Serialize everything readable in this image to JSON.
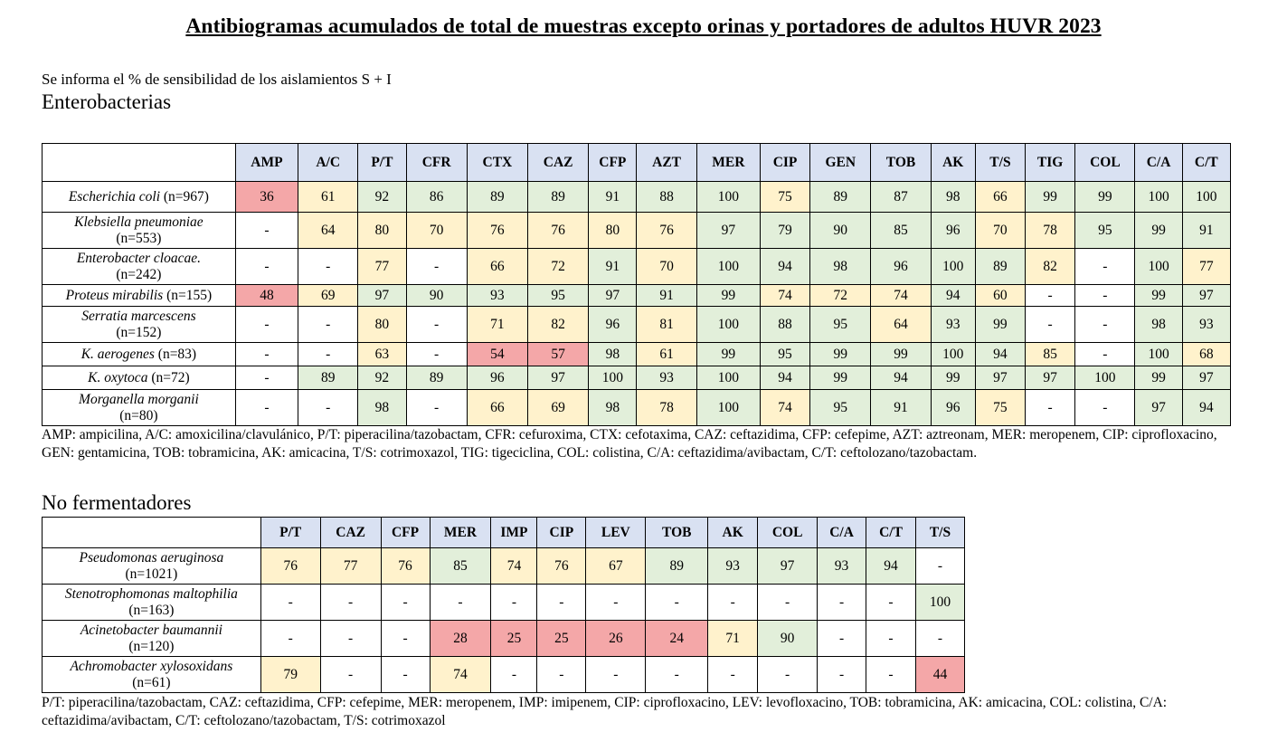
{
  "title": "Antibiogramas acumulados de total de muestras excepto orinas y portadores de adultos HUVR 2023",
  "intro": "Se informa el % de sensibilidad de los aislamientos S + I",
  "colors": {
    "green": "#e2efda",
    "yellow": "#fff2cc",
    "red": "#f4a7a8",
    "header": "#d9e1f2"
  },
  "entero": {
    "heading": "Enterobacterias",
    "columns": [
      "AMP",
      "A/C",
      "P/T",
      "CFR",
      "CTX",
      "CAZ",
      "CFP",
      "AZT",
      "MER",
      "CIP",
      "GEN",
      "TOB",
      "AK",
      "T/S",
      "TIG",
      "COL",
      "C/A",
      "C/T"
    ],
    "rows": [
      {
        "name": "Escherichia coli",
        "n": " (n=967)",
        "values": [
          "36",
          "61",
          "92",
          "86",
          "89",
          "89",
          "91",
          "88",
          "100",
          "75",
          "89",
          "87",
          "98",
          "66",
          "99",
          "99",
          "100",
          "100"
        ],
        "colors": [
          "r",
          "y",
          "g",
          "g",
          "g",
          "g",
          "g",
          "g",
          "g",
          "y",
          "g",
          "g",
          "g",
          "y",
          "g",
          "g",
          "g",
          "g"
        ]
      },
      {
        "name": "Klebsiella pneumoniae",
        "n": "(n=553)",
        "values": [
          "-",
          "64",
          "80",
          "70",
          "76",
          "76",
          "80",
          "76",
          "97",
          "79",
          "90",
          "85",
          "96",
          "70",
          "78",
          "95",
          "99",
          "91"
        ],
        "colors": [
          "w",
          "y",
          "y",
          "y",
          "y",
          "y",
          "y",
          "y",
          "g",
          "g",
          "g",
          "g",
          "g",
          "y",
          "y",
          "g",
          "g",
          "g"
        ]
      },
      {
        "name": "Enterobacter cloacae.",
        "n": "(n=242)",
        "values": [
          "-",
          "-",
          "77",
          "-",
          "66",
          "72",
          "91",
          "70",
          "100",
          "94",
          "98",
          "96",
          "100",
          "89",
          "82",
          "-",
          "100",
          "77"
        ],
        "colors": [
          "w",
          "w",
          "y",
          "w",
          "y",
          "y",
          "g",
          "y",
          "g",
          "g",
          "g",
          "g",
          "g",
          "g",
          "y",
          "w",
          "g",
          "y"
        ]
      },
      {
        "name": "Proteus mirabilis",
        "n": " (n=155)",
        "values": [
          "48",
          "69",
          "97",
          "90",
          "93",
          "95",
          "97",
          "91",
          "99",
          "74",
          "72",
          "74",
          "94",
          "60",
          "-",
          "-",
          "99",
          "97"
        ],
        "colors": [
          "r",
          "y",
          "g",
          "g",
          "g",
          "g",
          "g",
          "g",
          "g",
          "y",
          "y",
          "y",
          "g",
          "y",
          "w",
          "w",
          "g",
          "g"
        ]
      },
      {
        "name": "Serratia marcescens",
        "n": "(n=152)",
        "values": [
          "-",
          "-",
          "80",
          "-",
          "71",
          "82",
          "96",
          "81",
          "100",
          "88",
          "95",
          "64",
          "93",
          "99",
          "-",
          "-",
          "98",
          "93"
        ],
        "colors": [
          "w",
          "w",
          "y",
          "w",
          "y",
          "y",
          "g",
          "y",
          "g",
          "g",
          "g",
          "y",
          "g",
          "g",
          "w",
          "w",
          "g",
          "g"
        ]
      },
      {
        "name": "K. aerogenes",
        "n": " (n=83)",
        "values": [
          "-",
          "-",
          "63",
          "-",
          "54",
          "57",
          "98",
          "61",
          "99",
          "95",
          "99",
          "99",
          "100",
          "94",
          "85",
          "-",
          "100",
          "68"
        ],
        "colors": [
          "w",
          "w",
          "y",
          "w",
          "r",
          "r",
          "g",
          "y",
          "g",
          "g",
          "g",
          "g",
          "g",
          "g",
          "y",
          "w",
          "g",
          "y"
        ]
      },
      {
        "name": "K. oxytoca",
        "n": " (n=72)",
        "values": [
          "-",
          "89",
          "92",
          "89",
          "96",
          "97",
          "100",
          "93",
          "100",
          "94",
          "99",
          "94",
          "99",
          "97",
          "97",
          "100",
          "99",
          "97"
        ],
        "colors": [
          "w",
          "g",
          "g",
          "g",
          "g",
          "g",
          "g",
          "g",
          "g",
          "g",
          "g",
          "g",
          "g",
          "g",
          "g",
          "g",
          "g",
          "g"
        ]
      },
      {
        "name": "Morganella morganii",
        "n": "(n=80)",
        "values": [
          "-",
          "-",
          "98",
          "-",
          "66",
          "69",
          "98",
          "78",
          "100",
          "74",
          "95",
          "91",
          "96",
          "75",
          "-",
          "-",
          "97",
          "94"
        ],
        "colors": [
          "w",
          "w",
          "g",
          "w",
          "y",
          "y",
          "g",
          "y",
          "g",
          "y",
          "g",
          "g",
          "g",
          "y",
          "w",
          "w",
          "g",
          "g"
        ]
      }
    ],
    "footnote": "AMP: ampicilina, A/C: amoxicilina/clavulánico, P/T: piperacilina/tazobactam, CFR: cefuroxima, CTX: cefotaxima, CAZ: ceftazidima, CFP: cefepime, AZT: aztreonam, MER: meropenem, CIP: ciprofloxacino, GEN: gentamicina, TOB: tobramicina, AK: amicacina, T/S: cotrimoxazol, TIG: tigeciclina, COL: colistina, C/A: ceftazidima/avibactam, C/T: ceftolozano/tazobactam."
  },
  "nonferm": {
    "heading": "No fermentadores",
    "columns": [
      "P/T",
      "CAZ",
      "CFP",
      "MER",
      "IMP",
      "CIP",
      "LEV",
      "TOB",
      "AK",
      "COL",
      "C/A",
      "C/T",
      "T/S"
    ],
    "rows": [
      {
        "name": "Pseudomonas aeruginosa",
        "n": "(n=1021)",
        "values": [
          "76",
          "77",
          "76",
          "85",
          "74",
          "76",
          "67",
          "89",
          "93",
          "97",
          "93",
          "94",
          "-"
        ],
        "colors": [
          "y",
          "y",
          "y",
          "g",
          "y",
          "y",
          "y",
          "g",
          "g",
          "g",
          "g",
          "g",
          "w"
        ]
      },
      {
        "name": "Stenotrophomonas maltophilia",
        "n": "(n=163)",
        "values": [
          "-",
          "-",
          "-",
          "-",
          "-",
          "-",
          "-",
          "-",
          "-",
          "-",
          "-",
          "-",
          "100"
        ],
        "colors": [
          "w",
          "w",
          "w",
          "w",
          "w",
          "w",
          "w",
          "w",
          "w",
          "w",
          "w",
          "w",
          "g"
        ]
      },
      {
        "name": "Acinetobacter baumannii",
        "n": "(n=120)",
        "values": [
          "-",
          "-",
          "-",
          "28",
          "25",
          "25",
          "26",
          "24",
          "71",
          "90",
          "-",
          "-",
          "-"
        ],
        "colors": [
          "w",
          "w",
          "w",
          "r",
          "r",
          "r",
          "r",
          "r",
          "y",
          "g",
          "w",
          "w",
          "w"
        ]
      },
      {
        "name": "Achromobacter xylosoxidans",
        "n": "(n=61)",
        "values": [
          "79",
          "-",
          "-",
          "74",
          "-",
          "-",
          "-",
          "-",
          "-",
          "-",
          "-",
          "-",
          "44"
        ],
        "colors": [
          "y",
          "w",
          "w",
          "y",
          "w",
          "w",
          "w",
          "w",
          "w",
          "w",
          "w",
          "w",
          "r"
        ]
      }
    ],
    "footnote": "P/T: piperacilina/tazobactam, CAZ: ceftazidima, CFP: cefepime, MER: meropenem, IMP: imipenem, CIP: ciprofloxacino, LEV: levofloxacino, TOB: tobramicina, AK: amicacina, COL: colistina, C/A: ceftazidima/avibactam, C/T: ceftolozano/tazobactam, T/S: cotrimoxazol"
  }
}
